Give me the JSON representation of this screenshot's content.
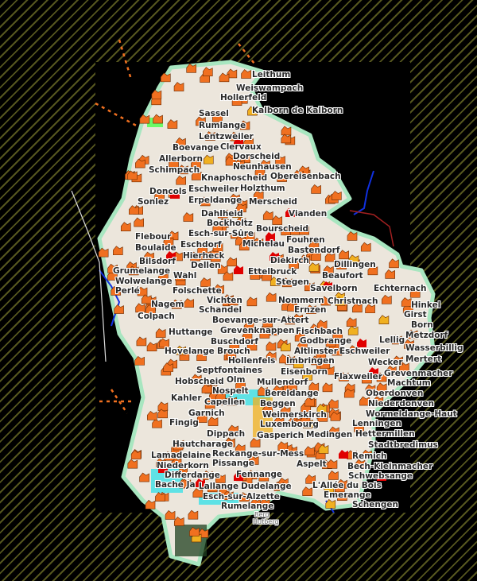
{
  "map": {
    "colors": {
      "land": "#ece6dc",
      "settlement_marker": "#f07020",
      "town_marker": "#e00000",
      "border": "#a8e6c0",
      "water": "#1030e0",
      "stripes": "#55561f",
      "urban": "#f0b020",
      "highlight": "#40ff40",
      "cyan_area": "#30e0e8"
    },
    "labels": [
      "Leithum",
      "Weiswampach",
      "Hollerfeld",
      "Kalborn de Kalborn",
      "Sassel",
      "Rumlange",
      "Lentzweiler",
      "Clervaux",
      "Boevange",
      "Dorscheid",
      "Allerborn",
      "Neunhausen",
      "Schimpach",
      "Knaphoscheid",
      "Obereisenbach",
      "Eschweiler",
      "Holzthum",
      "Erpeldange",
      "Doncols",
      "Sonlez",
      "Merscheid",
      "Dahlheid",
      "Vianden",
      "Bockholtz",
      "Esch-sur-Sûre",
      "Bourscheid",
      "Fouhren",
      "Flebour",
      "Michelau",
      "Boulaide",
      "Bastendorf",
      "Eschdorf",
      "Hierheck",
      "Diekirch",
      "Bilsdorf",
      "Dellen",
      "Grumelange",
      "Wahl",
      "Ettelbruck",
      "Dillingen",
      "Beaufort",
      "Wolwelange",
      "Stegen",
      "Perlé",
      "Folschette",
      "Savelborn",
      "Echternach",
      "Vichten",
      "Schandel",
      "Nommern",
      "Christnach",
      "Hinkel",
      "Nagem",
      "Boevange-sur-Attert",
      "Ernzen",
      "Girst",
      "Colpach",
      "Grevenknappen",
      "Born",
      "Buschdorf",
      "Fischbach",
      "Metzdorf",
      "Huttange",
      "Brouch",
      "Godbrange",
      "Hovelange",
      "Altlinster",
      "Eschweiler",
      "Lellig",
      "Wasserbillig",
      "Hollenfels",
      "Septfontaines",
      "Imbringen",
      "Mertert",
      "Hobscheid",
      "Eisenborn",
      "Wecker",
      "Mullendorf",
      "Grevenmacher",
      "Nospelt",
      "Flaxweiler",
      "Olm",
      "Bereldange",
      "Machtum",
      "Oberdonven",
      "Capellen",
      "Beggen",
      "Kahler",
      "Weimerskirch",
      "Niederdonven",
      "Luxembourg",
      "Wormeldange-Haut",
      "Garnich",
      "Lenningen",
      "Fingig",
      "Gasperich",
      "Hettermillen",
      "Dippach",
      "Hautcharage",
      "Medingen",
      "Stadtbredimus",
      "Reckange-sur-Mess",
      "Lamadelaine",
      "Pissange",
      "Remich",
      "Niederkorn",
      "Bech-Kleinmacher",
      "Differdange",
      "Fennange",
      "Aspelt",
      "Lallange",
      "Schwebsange",
      "Bache Ja",
      "Esch-sur-Alzette",
      "L'Allée du Bois",
      "Dudelange",
      "Emerange",
      "Schengen",
      "Rumelange"
    ],
    "minor_labels": [
      "Berg",
      "Hutberg"
    ]
  }
}
